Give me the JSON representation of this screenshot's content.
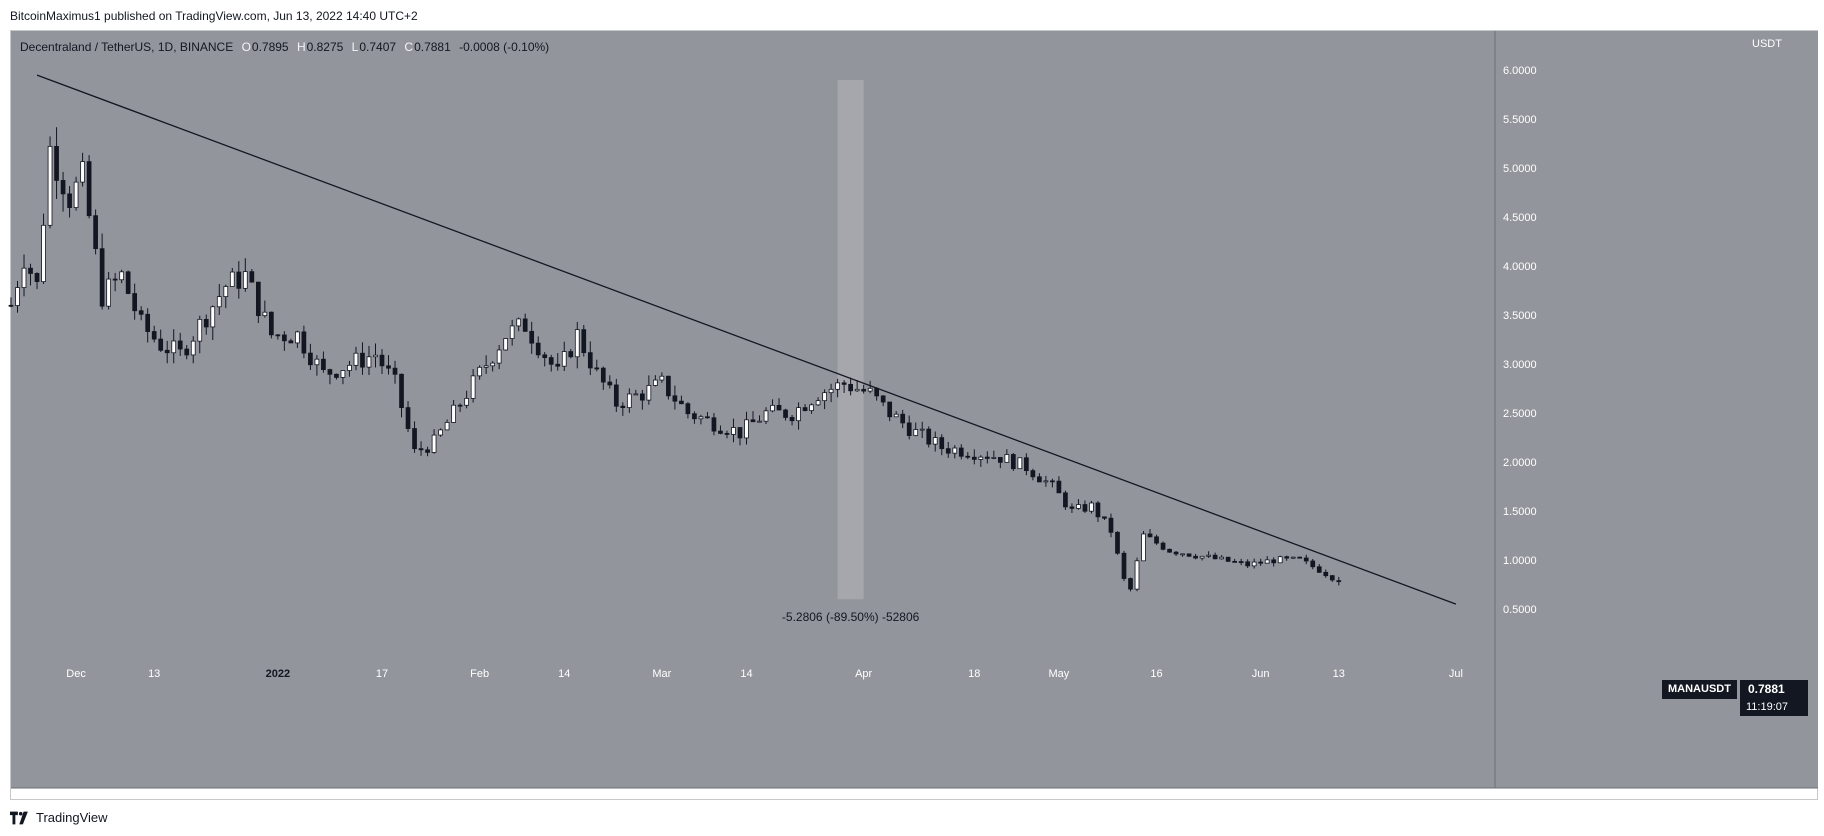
{
  "header": {
    "published_line": "BitcoinMaximus1 published on TradingView.com, Jun 13, 2022 14:40 UTC+2"
  },
  "legend": {
    "symbol_line": "Decentraland / TetherUS, 1D, BINANCE",
    "open_label": "O",
    "open_value": "0.7895",
    "high_label": "H",
    "high_value": "0.8275",
    "low_label": "L",
    "low_value": "0.7407",
    "close_label": "C",
    "close_value": "0.7881",
    "change": "-0.0008 (-0.10%)"
  },
  "price_axis": {
    "unit": "USDT"
  },
  "last_price": {
    "symbol": "MANAUSDT",
    "price": "0.7881",
    "countdown": "11:19:07"
  },
  "footer": {
    "brand": "TradingView"
  },
  "colors": {
    "pane_background": "#93959c",
    "candle_up": "#ffffff",
    "candle_down": "#131722",
    "trendline": "#131722",
    "highlight": "#a8aab0"
  },
  "chart_data": {
    "type": "candlestick",
    "symbol": "Decentraland / TetherUS",
    "interval": "1D",
    "exchange": "BINANCE",
    "x_range": [
      "2021-11-21",
      "2022-07-07"
    ],
    "ylim": [
      0.0,
      6.4
    ],
    "y_ticks": [
      "6.0000",
      "5.5000",
      "5.0000",
      "4.5000",
      "4.0000",
      "3.5000",
      "3.0000",
      "2.5000",
      "2.0000",
      "1.5000",
      "1.0000",
      "0.5000"
    ],
    "x_ticks": [
      {
        "date": "2021-12-01",
        "label": "Dec"
      },
      {
        "date": "2021-12-13",
        "label": "13"
      },
      {
        "date": "2022-01-01",
        "label": "2022"
      },
      {
        "date": "2022-01-17",
        "label": "17"
      },
      {
        "date": "2022-02-01",
        "label": "Feb"
      },
      {
        "date": "2022-02-14",
        "label": "14"
      },
      {
        "date": "2022-03-01",
        "label": "Mar"
      },
      {
        "date": "2022-03-14",
        "label": "14"
      },
      {
        "date": "2022-04-01",
        "label": "Apr"
      },
      {
        "date": "2022-04-18",
        "label": "18"
      },
      {
        "date": "2022-05-01",
        "label": "May"
      },
      {
        "date": "2022-05-16",
        "label": "16"
      },
      {
        "date": "2022-06-01",
        "label": "Jun"
      },
      {
        "date": "2022-06-13",
        "label": "13"
      },
      {
        "date": "2022-07-01",
        "label": "Jul"
      }
    ],
    "close_path": [
      [
        "2021-11-21",
        3.6
      ],
      [
        "2021-11-23",
        4.1
      ],
      [
        "2021-11-25",
        3.8
      ],
      [
        "2021-11-27",
        5.2
      ],
      [
        "2021-11-30",
        4.7
      ],
      [
        "2021-12-02",
        4.9
      ],
      [
        "2021-12-05",
        3.7
      ],
      [
        "2021-12-08",
        3.9
      ],
      [
        "2021-12-11",
        3.4
      ],
      [
        "2021-12-14",
        3.2
      ],
      [
        "2021-12-17",
        3.1
      ],
      [
        "2021-12-20",
        3.4
      ],
      [
        "2021-12-24",
        3.8
      ],
      [
        "2021-12-27",
        3.9
      ],
      [
        "2021-12-31",
        3.3
      ],
      [
        "2022-01-04",
        3.3
      ],
      [
        "2022-01-08",
        2.9
      ],
      [
        "2022-01-12",
        3.0
      ],
      [
        "2022-01-16",
        3.1
      ],
      [
        "2022-01-19",
        2.8
      ],
      [
        "2022-01-22",
        2.1
      ],
      [
        "2022-01-25",
        2.2
      ],
      [
        "2022-01-28",
        2.5
      ],
      [
        "2022-02-01",
        2.9
      ],
      [
        "2022-02-05",
        3.3
      ],
      [
        "2022-02-08",
        3.4
      ],
      [
        "2022-02-10",
        3.2
      ],
      [
        "2022-02-13",
        2.9
      ],
      [
        "2022-02-16",
        3.3
      ],
      [
        "2022-02-19",
        2.9
      ],
      [
        "2022-02-22",
        2.6
      ],
      [
        "2022-02-26",
        2.7
      ],
      [
        "2022-03-01",
        2.8
      ],
      [
        "2022-03-05",
        2.5
      ],
      [
        "2022-03-09",
        2.4
      ],
      [
        "2022-03-13",
        2.3
      ],
      [
        "2022-03-17",
        2.5
      ],
      [
        "2022-03-21",
        2.5
      ],
      [
        "2022-03-25",
        2.7
      ],
      [
        "2022-03-29",
        2.8
      ],
      [
        "2022-04-02",
        2.7
      ],
      [
        "2022-04-05",
        2.5
      ],
      [
        "2022-04-09",
        2.3
      ],
      [
        "2022-04-13",
        2.15
      ],
      [
        "2022-04-18",
        2.1
      ],
      [
        "2022-04-22",
        2.05
      ],
      [
        "2022-04-26",
        1.95
      ],
      [
        "2022-04-30",
        1.75
      ],
      [
        "2022-05-03",
        1.5
      ],
      [
        "2022-05-06",
        1.55
      ],
      [
        "2022-05-09",
        1.3
      ],
      [
        "2022-05-11",
        0.8
      ],
      [
        "2022-05-12",
        0.7
      ],
      [
        "2022-05-14",
        1.25
      ],
      [
        "2022-05-18",
        1.1
      ],
      [
        "2022-05-22",
        1.05
      ],
      [
        "2022-05-26",
        1.0
      ],
      [
        "2022-05-30",
        0.95
      ],
      [
        "2022-06-03",
        1.0
      ],
      [
        "2022-06-07",
        1.0
      ],
      [
        "2022-06-10",
        0.9
      ],
      [
        "2022-06-13",
        0.7881
      ]
    ],
    "trendline": {
      "start": [
        "2021-11-25",
        5.95
      ],
      "end": [
        "2022-07-01",
        0.55
      ]
    },
    "highlight": {
      "from": "2022-03-28",
      "to": "2022-04-01",
      "top": 5.9,
      "bottom": 0.6
    },
    "measure_label": "-5.2806 (-89.50%) -52806",
    "last": {
      "date": "2022-06-13",
      "open": 0.7895,
      "high": 0.8275,
      "low": 0.7407,
      "close": 0.7881
    }
  }
}
